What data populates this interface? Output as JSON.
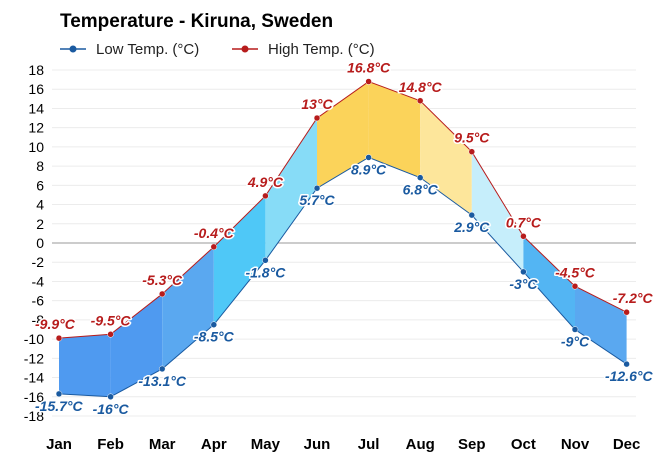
{
  "chart_data": {
    "type": "area",
    "title": "Temperature - Kiruna, Sweden",
    "categories": [
      "Jan",
      "Feb",
      "Mar",
      "Apr",
      "May",
      "Jun",
      "Jul",
      "Aug",
      "Sep",
      "Oct",
      "Nov",
      "Dec"
    ],
    "series": [
      {
        "name": "Low Temp. (°C)",
        "color": "#1a5aa0",
        "values": [
          -15.7,
          -16,
          -13.1,
          -8.5,
          -1.8,
          5.7,
          8.9,
          6.8,
          2.9,
          -3,
          -9,
          -12.6
        ],
        "labels": [
          "-15.7°C",
          "-16°C",
          "-13.1°C",
          "-8.5°C",
          "-1.8°C",
          "5.7°C",
          "8.9°C",
          "6.8°C",
          "2.9°C",
          "-3°C",
          "-9°C",
          "-12.6°C"
        ]
      },
      {
        "name": "High Temp. (°C)",
        "color": "#b71c1c",
        "values": [
          -9.9,
          -9.5,
          -5.3,
          -0.4,
          4.9,
          13,
          16.8,
          14.8,
          9.5,
          0.7,
          -4.5,
          -7.2
        ],
        "labels": [
          "-9.9°C",
          "-9.5°C",
          "-5.3°C",
          "-0.4°C",
          "4.9°C",
          "13°C",
          "16.8°C",
          "14.8°C",
          "9.5°C",
          "0.7°C",
          "-4.5°C",
          "-7.2°C"
        ]
      }
    ],
    "ylim": [
      -18,
      18
    ],
    "yticks": [
      "18",
      "16",
      "14",
      "12",
      "10",
      "8",
      "6",
      "4",
      "2",
      "0",
      "-2",
      "-4",
      "-6",
      "-8",
      "-10",
      "-12",
      "-14",
      "-16",
      "-18"
    ],
    "xlabel": "",
    "ylabel": "",
    "grid": true,
    "legend_position": "top-left"
  }
}
